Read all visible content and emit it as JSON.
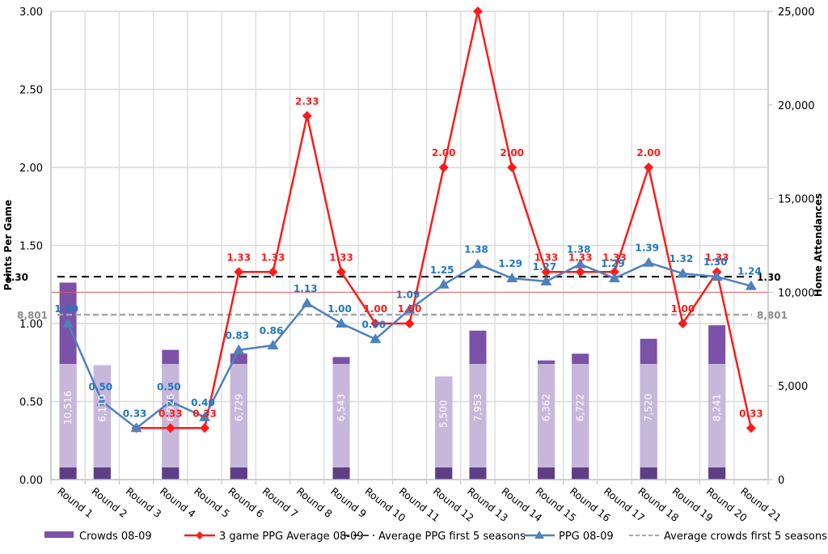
{
  "chart_data": {
    "type": "bar",
    "title": "",
    "xlabel": "",
    "ylabel": "Points Per Game",
    "y2label": "Home Attendances",
    "ylim": [
      0,
      3.0
    ],
    "y2lim": [
      0,
      25000
    ],
    "yticks": [
      "0.00",
      "0.50",
      "1.00",
      "1.50",
      "2.00",
      "2.50",
      "3.00"
    ],
    "y2ticks": [
      "0",
      "5,000",
      "10,000",
      "15,000",
      "20,000",
      "25,000"
    ],
    "grid": true,
    "legend_position": "bottom",
    "categories": [
      "Round 1",
      "Round 2",
      "Round 3",
      "Round 4",
      "Round 5",
      "Round 6",
      "Round 7",
      "Round 8",
      "Round 9",
      "Round 10",
      "Round 11",
      "Round 12",
      "Round 13",
      "Round 14",
      "Round 15",
      "Round 16",
      "Round 17",
      "Round 18",
      "Round 19",
      "Round 20",
      "Round 21"
    ],
    "series": [
      {
        "name": "Crowds 08-09",
        "type": "bar",
        "axis": "right",
        "color": "#7B52A8",
        "values": [
          10516,
          6110,
          null,
          6926,
          null,
          6729,
          null,
          null,
          6543,
          null,
          null,
          5500,
          7953,
          null,
          6362,
          6722,
          null,
          7520,
          null,
          8241,
          null
        ],
        "labels": [
          "10,516",
          "6,110",
          "",
          "6,926",
          "",
          "6,729",
          "",
          "",
          "6,543",
          "",
          "",
          "5,500",
          "7,953",
          "",
          "6,362",
          "6,722",
          "",
          "7,520",
          "",
          "8,241",
          ""
        ]
      },
      {
        "name": "3 game PPG Average 08-09",
        "type": "line",
        "axis": "left",
        "color": "#FF1A1A",
        "marker": "diamond",
        "values": [
          null,
          null,
          0.33,
          0.33,
          0.33,
          1.33,
          1.33,
          2.33,
          1.33,
          1.0,
          1.0,
          2.0,
          3.0,
          2.0,
          1.33,
          1.33,
          1.33,
          2.0,
          1.0,
          1.33,
          0.33
        ],
        "labels": [
          "",
          "",
          "",
          "0.33",
          "0.33",
          "1.33",
          "1.33",
          "2.33",
          "1.33",
          "1.00",
          "1.00",
          "2.00",
          "3.00",
          "2.00",
          "1.33",
          "1.33",
          "1.33",
          "2.00",
          "1.00",
          "1.33",
          "0.33"
        ]
      },
      {
        "name": "PPG 08-09",
        "type": "line",
        "axis": "left",
        "color": "#4F81BD",
        "marker": "triangle",
        "values": [
          1.0,
          0.5,
          0.33,
          0.5,
          0.4,
          0.83,
          0.86,
          1.13,
          1.0,
          0.9,
          1.09,
          1.25,
          1.38,
          1.29,
          1.27,
          1.38,
          1.29,
          1.39,
          1.32,
          1.3,
          1.24
        ],
        "labels": [
          "1.00",
          "0.50",
          "0.33",
          "0.50",
          "0.40",
          "0.83",
          "0.86",
          "1.13",
          "1.00",
          "0.90",
          "1.09",
          "1.25",
          "1.38",
          "1.29",
          "1.27",
          "1.38",
          "1.29",
          "1.39",
          "1.32",
          "1.30",
          "1.24"
        ]
      },
      {
        "name": "Average PPG first 5 seasons",
        "type": "hline",
        "axis": "left",
        "color": "#000000",
        "value": 1.3,
        "label": "1.30"
      },
      {
        "name": "Average crowds first 5 seasons",
        "type": "hline",
        "axis": "right",
        "color": "#A6A6A6",
        "value": 8801,
        "label": "8,801"
      }
    ],
    "reference_line": {
      "axis": "right",
      "value": 10000,
      "color": "#E05A5A"
    }
  },
  "legend": [
    {
      "label": "Crowds 08-09",
      "kind": "bar",
      "color": "#7B52A8"
    },
    {
      "label": "3 game PPG Average 08-09",
      "kind": "line-diamond",
      "color": "#FF1A1A"
    },
    {
      "label": "Average PPG first 5 seasons",
      "kind": "dash",
      "color": "#000000"
    },
    {
      "label": "PPG 08-09",
      "kind": "line-triangle",
      "color": "#4F81BD"
    },
    {
      "label": "Average crowds first 5 seasons",
      "kind": "dash-light",
      "color": "#A6A6A6"
    }
  ]
}
